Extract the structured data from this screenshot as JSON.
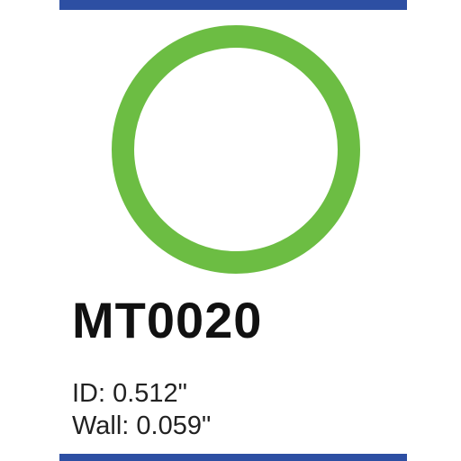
{
  "colors": {
    "accent_bar": "#2d4fa3",
    "ring": "#6cbd43",
    "text": "#111111"
  },
  "product": {
    "part_number": "MT0020",
    "id_spec": "ID: 0.512\"",
    "wall_spec": "Wall: 0.059\""
  },
  "image": {
    "icon": "o-ring-icon"
  }
}
